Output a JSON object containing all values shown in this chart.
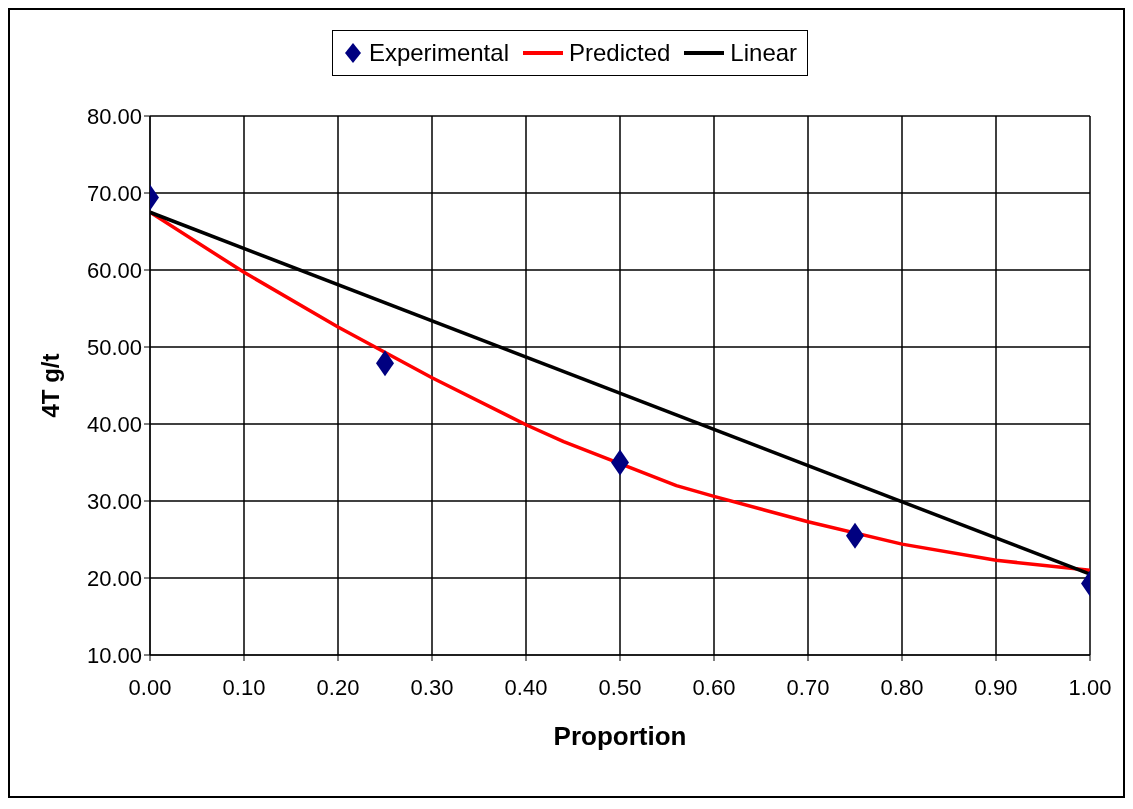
{
  "chart_data": {
    "type": "line",
    "xlabel": "Proportion",
    "ylabel": "4T g/t",
    "xlim": [
      0,
      1
    ],
    "ylim": [
      10,
      80
    ],
    "xticks": [
      {
        "value": 0,
        "label": "0.00"
      },
      {
        "value": 0.1,
        "label": "0.10"
      },
      {
        "value": 0.2,
        "label": "0.20"
      },
      {
        "value": 0.3,
        "label": "0.30"
      },
      {
        "value": 0.4,
        "label": "0.40"
      },
      {
        "value": 0.5,
        "label": "0.50"
      },
      {
        "value": 0.6,
        "label": "0.60"
      },
      {
        "value": 0.7,
        "label": "0.70"
      },
      {
        "value": 0.8,
        "label": "0.80"
      },
      {
        "value": 0.9,
        "label": "0.90"
      },
      {
        "value": 1,
        "label": "1.00"
      }
    ],
    "yticks": [
      {
        "value": 10,
        "label": "10.00"
      },
      {
        "value": 20,
        "label": "20.00"
      },
      {
        "value": 30,
        "label": "30.00"
      },
      {
        "value": 40,
        "label": "40.00"
      },
      {
        "value": 50,
        "label": "50.00"
      },
      {
        "value": 60,
        "label": "60.00"
      },
      {
        "value": 70,
        "label": "70.00"
      },
      {
        "value": 80,
        "label": "80.00"
      }
    ],
    "grid": true,
    "legend": "top",
    "series": [
      {
        "name": "Experimental",
        "type": "scatter",
        "marker": "diamond",
        "color": "#000080",
        "x": [
          0,
          0.25,
          0.5,
          0.75,
          1
        ],
        "values": [
          69.4,
          47.9,
          35.0,
          25.5,
          19.3
        ]
      },
      {
        "name": "Predicted",
        "type": "line",
        "marker": "none",
        "color": "#ff0000",
        "x": [
          0,
          0.1,
          0.2,
          0.3,
          0.4,
          0.44,
          0.56,
          0.6,
          0.7,
          0.8,
          0.9,
          1
        ],
        "values": [
          67.5,
          59.7,
          52.6,
          46.0,
          39.9,
          37.7,
          32.0,
          30.6,
          27.3,
          24.4,
          22.3,
          21.0
        ]
      },
      {
        "name": "Linear",
        "type": "line",
        "marker": "none",
        "color": "#000000",
        "x": [
          0,
          1
        ],
        "values": [
          67.5,
          20.5
        ]
      }
    ]
  }
}
